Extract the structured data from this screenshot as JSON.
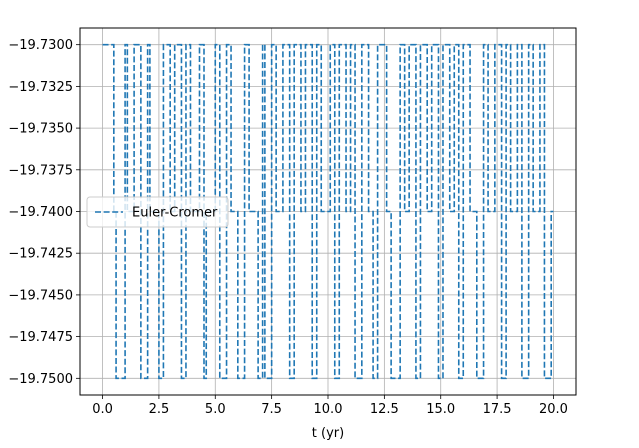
{
  "chart_data": {
    "type": "line",
    "title": "",
    "xlabel": "t (yr)",
    "ylabel": "",
    "xlim": [
      -1.0,
      21.0
    ],
    "ylim": [
      -19.751,
      -19.729
    ],
    "xticks": [
      0.0,
      2.5,
      5.0,
      7.5,
      10.0,
      12.5,
      15.0,
      17.5,
      20.0
    ],
    "xtick_labels": [
      "0.0",
      "2.5",
      "5.0",
      "7.5",
      "10.0",
      "12.5",
      "15.0",
      "17.5",
      "20.0"
    ],
    "yticks": [
      -19.75,
      -19.7475,
      -19.745,
      -19.7425,
      -19.74,
      -19.7375,
      -19.735,
      -19.7325,
      -19.73
    ],
    "ytick_labels": [
      "−19.7500",
      "−19.7475",
      "−19.7450",
      "−19.7425",
      "−19.7400",
      "−19.7375",
      "−19.7350",
      "−19.7325",
      "−19.7300"
    ],
    "grid": true,
    "legend_position": "center-left",
    "series": [
      {
        "name": "Euler-Cromer",
        "color": "#1f77b4",
        "line_style": "dashed",
        "x": [
          0.0,
          0.5,
          0.5,
          0.6,
          0.6,
          1.0,
          1.0,
          1.1,
          1.1,
          1.4,
          1.4,
          1.7,
          1.7,
          2.0,
          2.0,
          2.1,
          2.1,
          2.5,
          2.5,
          2.7,
          2.7,
          3.0,
          3.0,
          3.2,
          3.2,
          3.5,
          3.5,
          3.7,
          3.7,
          3.9,
          3.9,
          4.3,
          4.3,
          4.5,
          4.5,
          4.6,
          4.6,
          5.0,
          5.0,
          5.2,
          5.2,
          5.5,
          5.5,
          5.7,
          5.7,
          6.0,
          6.0,
          6.3,
          6.3,
          6.5,
          6.5,
          6.9,
          6.9,
          7.1,
          7.1,
          7.2,
          7.2,
          7.5,
          7.5,
          7.7,
          7.7,
          8.0,
          8.0,
          8.3,
          8.3,
          8.5,
          8.5,
          8.8,
          8.8,
          9.0,
          9.0,
          9.3,
          9.3,
          9.5,
          9.5,
          9.7,
          9.7,
          10.1,
          10.1,
          10.3,
          10.3,
          10.5,
          10.5,
          10.8,
          10.8,
          11.0,
          11.0,
          11.2,
          11.2,
          11.5,
          11.5,
          11.8,
          11.8,
          12.0,
          12.0,
          12.2,
          12.2,
          12.6,
          12.6,
          12.8,
          12.8,
          13.2,
          13.2,
          13.4,
          13.4,
          13.6,
          13.6,
          13.9,
          13.9,
          14.1,
          14.1,
          14.4,
          14.4,
          14.6,
          14.6,
          14.9,
          14.9,
          15.1,
          15.1,
          15.4,
          15.4,
          15.6,
          15.6,
          15.8,
          15.8,
          16.0,
          16.0,
          16.3,
          16.3,
          16.6,
          16.6,
          16.9,
          16.9,
          17.1,
          17.1,
          17.4,
          17.4,
          17.7,
          17.7,
          17.9,
          17.9,
          18.1,
          18.1,
          18.4,
          18.4,
          18.6,
          18.6,
          18.9,
          18.9,
          19.1,
          19.1,
          19.4,
          19.4,
          19.6,
          19.6,
          19.9,
          19.9,
          20.0
        ],
        "y": [
          -19.73,
          -19.73,
          -19.74,
          -19.74,
          -19.75,
          -19.75,
          -19.73,
          -19.73,
          -19.74,
          -19.74,
          -19.73,
          -19.73,
          -19.75,
          -19.75,
          -19.73,
          -19.73,
          -19.74,
          -19.74,
          -19.75,
          -19.75,
          -19.73,
          -19.73,
          -19.74,
          -19.74,
          -19.73,
          -19.73,
          -19.75,
          -19.75,
          -19.73,
          -19.73,
          -19.74,
          -19.74,
          -19.73,
          -19.73,
          -19.75,
          -19.75,
          -19.74,
          -19.74,
          -19.73,
          -19.73,
          -19.75,
          -19.75,
          -19.73,
          -19.73,
          -19.74,
          -19.74,
          -19.75,
          -19.75,
          -19.73,
          -19.73,
          -19.74,
          -19.74,
          -19.75,
          -19.75,
          -19.73,
          -19.73,
          -19.75,
          -19.75,
          -19.73,
          -19.73,
          -19.74,
          -19.74,
          -19.73,
          -19.73,
          -19.75,
          -19.75,
          -19.73,
          -19.73,
          -19.74,
          -19.74,
          -19.73,
          -19.73,
          -19.75,
          -19.75,
          -19.73,
          -19.73,
          -19.74,
          -19.74,
          -19.73,
          -19.73,
          -19.75,
          -19.75,
          -19.73,
          -19.73,
          -19.74,
          -19.74,
          -19.73,
          -19.73,
          -19.75,
          -19.75,
          -19.73,
          -19.73,
          -19.74,
          -19.74,
          -19.75,
          -19.75,
          -19.73,
          -19.73,
          -19.74,
          -19.74,
          -19.75,
          -19.75,
          -19.73,
          -19.73,
          -19.74,
          -19.74,
          -19.73,
          -19.73,
          -19.75,
          -19.75,
          -19.73,
          -19.73,
          -19.74,
          -19.74,
          -19.73,
          -19.73,
          -19.75,
          -19.75,
          -19.73,
          -19.73,
          -19.74,
          -19.74,
          -19.73,
          -19.73,
          -19.75,
          -19.75,
          -19.73,
          -19.73,
          -19.74,
          -19.74,
          -19.75,
          -19.75,
          -19.73,
          -19.73,
          -19.74,
          -19.74,
          -19.73,
          -19.73,
          -19.75,
          -19.75,
          -19.73,
          -19.73,
          -19.74,
          -19.74,
          -19.73,
          -19.73,
          -19.75,
          -19.75,
          -19.73,
          -19.73,
          -19.74,
          -19.74,
          -19.73,
          -19.73,
          -19.75,
          -19.75,
          -19.74,
          -19.74
        ]
      }
    ]
  }
}
